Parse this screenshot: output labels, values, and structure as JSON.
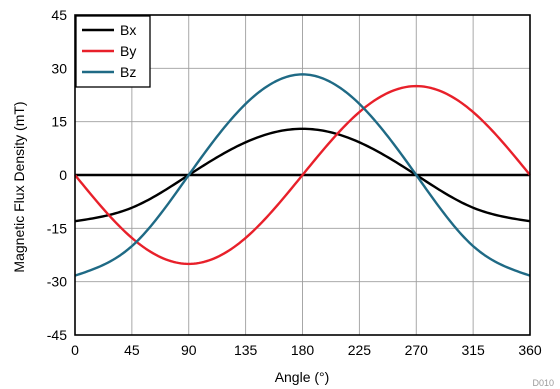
{
  "chart_data": {
    "type": "line",
    "xlabel": "Angle (°)",
    "ylabel": "Magnetic Flux Density (mT)",
    "xlim": [
      0,
      360
    ],
    "ylim": [
      -45,
      45
    ],
    "xticks": [
      0,
      45,
      90,
      135,
      180,
      225,
      270,
      315,
      360
    ],
    "yticks": [
      -45,
      -30,
      -15,
      0,
      15,
      30,
      45
    ],
    "grid": true,
    "legend_position": "top-left",
    "series": [
      {
        "name": "Bx",
        "color": "#000000",
        "x": [
          0,
          45,
          90,
          135,
          180,
          225,
          270,
          315,
          360
        ],
        "y": [
          -13,
          -9.2,
          0,
          9.2,
          13,
          9.2,
          0,
          -9.2,
          -13
        ]
      },
      {
        "name": "By",
        "color": "#e8202a",
        "x": [
          0,
          45,
          90,
          135,
          180,
          225,
          270,
          315,
          360
        ],
        "y": [
          0,
          -17.7,
          -25,
          -17.7,
          0,
          17.7,
          25,
          17.7,
          0
        ]
      },
      {
        "name": "Bz",
        "color": "#1f6a85",
        "x": [
          0,
          45,
          90,
          135,
          180,
          225,
          270,
          315,
          360
        ],
        "y": [
          -28.3,
          -20,
          0,
          20,
          28.3,
          20,
          0,
          -20,
          -28.3
        ]
      }
    ],
    "watermark": "D010"
  }
}
